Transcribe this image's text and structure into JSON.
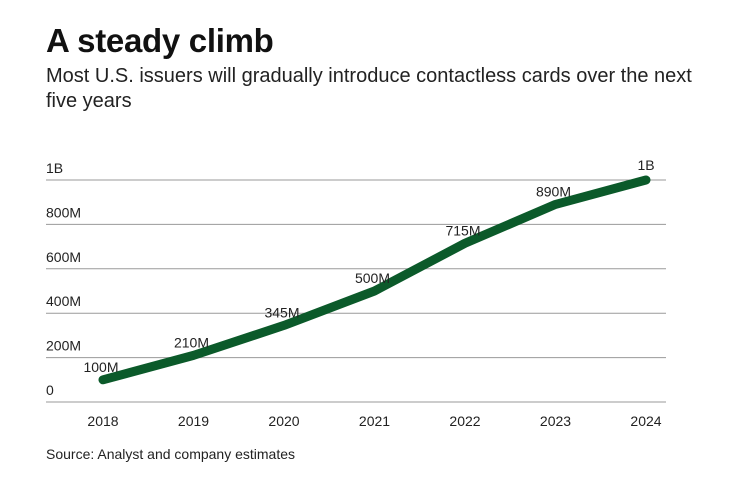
{
  "chart_data": {
    "type": "line",
    "title": "A steady climb",
    "subtitle": "Most U.S. issuers will gradually introduce contactless cards over the next five years",
    "source": "Source: Analyst and company estimates",
    "categories": [
      "2018",
      "2019",
      "2020",
      "2021",
      "2022",
      "2023",
      "2024"
    ],
    "values": [
      100000000,
      210000000,
      345000000,
      500000000,
      715000000,
      890000000,
      1000000000
    ],
    "data_labels": [
      "100M",
      "210M",
      "345M",
      "500M",
      "715M",
      "890M",
      "1B"
    ],
    "ylim": [
      0,
      1000000000
    ],
    "yticks": [
      0,
      200000000,
      400000000,
      600000000,
      800000000,
      1000000000
    ],
    "ytick_labels": [
      "0",
      "200M",
      "400M",
      "600M",
      "800M",
      "1B"
    ],
    "grid": true,
    "line_color": "#0b5a2a",
    "grid_color": "#9a9a9a"
  }
}
